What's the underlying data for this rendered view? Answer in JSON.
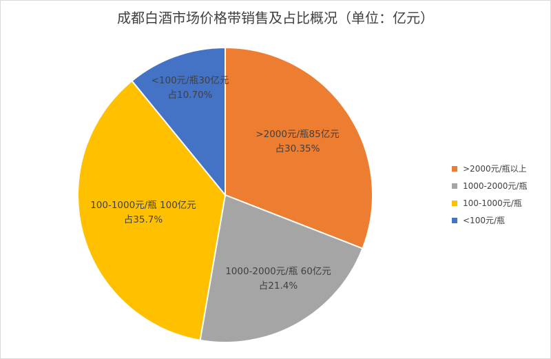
{
  "chart_data": {
    "type": "pie",
    "title": "成都白酒市场价格带销售及占比概况（单位：亿元）",
    "start_angle_deg": 0,
    "direction": "clockwise",
    "legend_position": "right",
    "slices": [
      {
        "name": ">2000元/瓶以上",
        "value": 85,
        "percent": 30.35,
        "color": "#ED7D31",
        "label_line1": ">2000元/瓶85亿元",
        "label_line2": "占30.35%"
      },
      {
        "name": "1000-2000元/瓶",
        "value": 60,
        "percent": 21.4,
        "color": "#A5A5A5",
        "label_line1": "1000-2000元/瓶 60亿元",
        "label_line2": "占21.4%"
      },
      {
        "name": "100-1000元/瓶",
        "value": 100,
        "percent": 35.7,
        "color": "#FFC000",
        "label_line1": "100-1000元/瓶 100亿元",
        "label_line2": "占35.7%"
      },
      {
        "name": "<100元/瓶",
        "value": 30,
        "percent": 10.7,
        "color": "#4472C4",
        "label_line1": "<100元/瓶30亿元",
        "label_line2": "占10.70%"
      }
    ]
  }
}
